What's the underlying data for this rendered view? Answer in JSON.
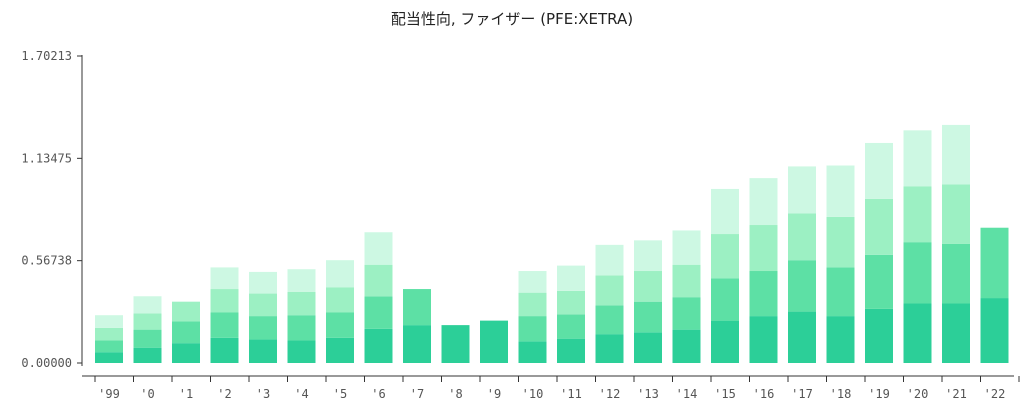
{
  "chart_data": {
    "type": "bar",
    "stacked": true,
    "title": "配当性向, ファイザー (PFE:XETRA)",
    "xlabel": "",
    "ylabel": "",
    "ylim": [
      0,
      1.70213
    ],
    "yticks": [
      "1.70213",
      "1.13475",
      "0.56738",
      "0.00000"
    ],
    "ytick_values": [
      1.70213,
      1.13475,
      0.56738,
      0.0
    ],
    "grid": false,
    "legend": "none",
    "categories": [
      "'99",
      "'0",
      "'1",
      "'2",
      "'3",
      "'4",
      "'5",
      "'6",
      "'7",
      "'8",
      "'9",
      "'10",
      "'11",
      "'12",
      "'13",
      "'14",
      "'15",
      "'16",
      "'17",
      "'18",
      "'19",
      "'20",
      "'21",
      "'22"
    ],
    "series": [
      {
        "color": "#2ccf98",
        "values": [
          0.06,
          0.085,
          0.11,
          0.14,
          0.13,
          0.125,
          0.14,
          0.19,
          0.21,
          0.21,
          0.235,
          0.12,
          0.135,
          0.16,
          0.17,
          0.185,
          0.235,
          0.26,
          0.285,
          0.26,
          0.3,
          0.33,
          0.33,
          0.36
        ]
      },
      {
        "color": "#5de0a5",
        "values": [
          0.065,
          0.1,
          0.12,
          0.14,
          0.13,
          0.14,
          0.14,
          0.18,
          0.2,
          0,
          0,
          0.14,
          0.135,
          0.16,
          0.17,
          0.18,
          0.235,
          0.25,
          0.285,
          0.27,
          0.3,
          0.34,
          0.33,
          0.39
        ]
      },
      {
        "color": "#9cf0c3",
        "values": [
          0.07,
          0.09,
          0.11,
          0.13,
          0.125,
          0.13,
          0.14,
          0.175,
          0,
          0,
          0,
          0.13,
          0.13,
          0.165,
          0.17,
          0.18,
          0.245,
          0.255,
          0.26,
          0.28,
          0.31,
          0.31,
          0.33,
          0
        ]
      },
      {
        "color": "#cdf8e3",
        "values": [
          0.07,
          0.095,
          0,
          0.12,
          0.12,
          0.125,
          0.15,
          0.18,
          0,
          0,
          0,
          0.12,
          0.14,
          0.17,
          0.17,
          0.19,
          0.25,
          0.26,
          0.26,
          0.285,
          0.31,
          0.31,
          0.33,
          0
        ]
      }
    ]
  }
}
